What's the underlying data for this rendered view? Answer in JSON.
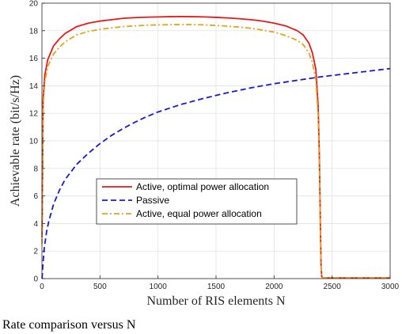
{
  "caption": "Rate comparison versus N",
  "chart_data": {
    "type": "line",
    "xlabel": "Number of RIS elements N",
    "ylabel": "Achievable rate (bit/s/Hz)",
    "xlim": [
      0,
      3000
    ],
    "ylim": [
      0,
      20
    ],
    "xticks": [
      0,
      500,
      1000,
      1500,
      2000,
      2500,
      3000
    ],
    "yticks": [
      0,
      2,
      4,
      6,
      8,
      10,
      12,
      14,
      16,
      18,
      20
    ],
    "grid": true,
    "legend_position": "lower-center",
    "series": [
      {
        "name": "Active, optimal power allocation",
        "color": "#e41a1c",
        "style": "solid",
        "x": [
          1,
          10,
          25,
          50,
          100,
          150,
          200,
          300,
          400,
          500,
          600,
          700,
          800,
          900,
          1000,
          1100,
          1200,
          1300,
          1400,
          1500,
          1600,
          1700,
          1800,
          1900,
          2000,
          2100,
          2200,
          2250,
          2300,
          2330,
          2360,
          2380,
          2390,
          2400,
          2405,
          2410,
          2420,
          3000
        ],
        "values": [
          3.0,
          13.0,
          14.8,
          15.9,
          16.9,
          17.4,
          17.8,
          18.3,
          18.55,
          18.7,
          18.8,
          18.9,
          18.95,
          18.98,
          19.0,
          19.02,
          19.03,
          19.02,
          19.0,
          18.97,
          18.93,
          18.87,
          18.8,
          18.7,
          18.55,
          18.35,
          18.0,
          17.7,
          17.1,
          16.4,
          15.2,
          12.5,
          9.0,
          3.5,
          1.0,
          0.15,
          0.05,
          0.05
        ]
      },
      {
        "name": "Passive",
        "color": "#1a1acc",
        "style": "dashed",
        "x": [
          1,
          5,
          10,
          20,
          40,
          60,
          100,
          150,
          200,
          300,
          400,
          500,
          600,
          700,
          800,
          900,
          1000,
          1200,
          1400,
          1600,
          1800,
          2000,
          2200,
          2400,
          2600,
          2800,
          3000
        ],
        "values": [
          0.0,
          0.6,
          1.2,
          2.2,
          3.4,
          4.2,
          5.4,
          6.4,
          7.2,
          8.3,
          9.1,
          9.8,
          10.4,
          10.9,
          11.35,
          11.75,
          12.1,
          12.65,
          13.1,
          13.5,
          13.85,
          14.15,
          14.4,
          14.65,
          14.85,
          15.05,
          15.25
        ]
      },
      {
        "name": "Active, equal power allocation",
        "color": "#e1a51b",
        "style": "dashdot",
        "x": [
          1,
          10,
          25,
          50,
          100,
          150,
          200,
          300,
          400,
          500,
          600,
          700,
          800,
          900,
          1000,
          1100,
          1200,
          1300,
          1400,
          1500,
          1600,
          1700,
          1800,
          1900,
          2000,
          2100,
          2200,
          2250,
          2300,
          2330,
          2360,
          2380,
          2390,
          2400,
          2405,
          2410,
          2420,
          3000
        ],
        "values": [
          2.5,
          12.5,
          14.3,
          15.4,
          16.3,
          16.8,
          17.2,
          17.7,
          17.95,
          18.1,
          18.2,
          18.3,
          18.35,
          18.4,
          18.42,
          18.44,
          18.45,
          18.44,
          18.42,
          18.38,
          18.33,
          18.26,
          18.18,
          18.05,
          17.9,
          17.65,
          17.3,
          17.0,
          16.4,
          15.7,
          14.4,
          11.8,
          8.3,
          3.0,
          0.9,
          0.1,
          0.05,
          0.05
        ]
      }
    ]
  }
}
